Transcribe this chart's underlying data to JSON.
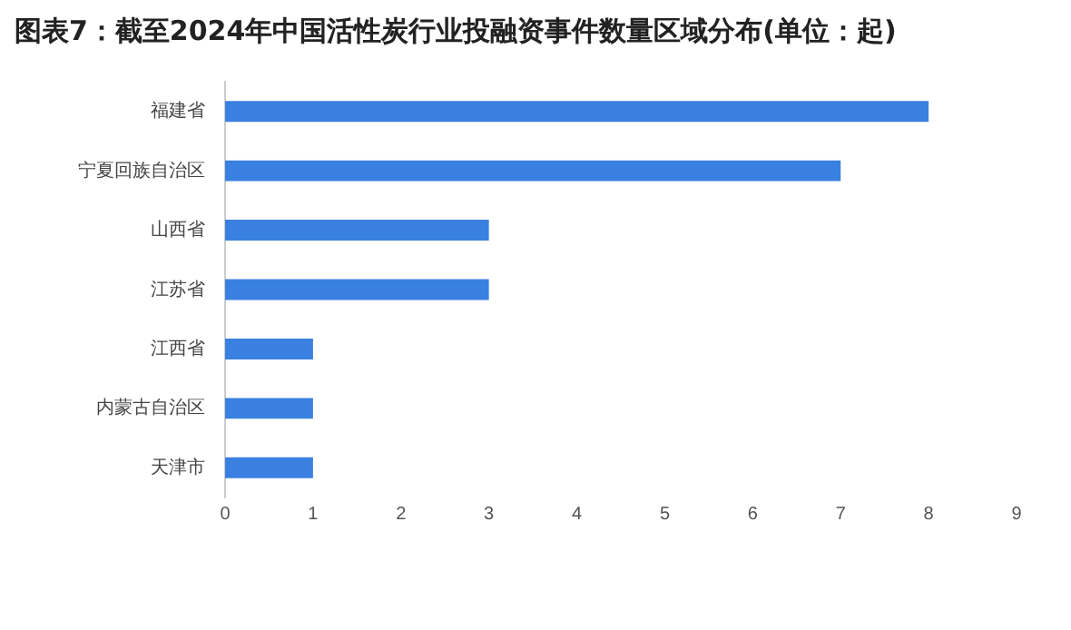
{
  "chart_data": {
    "type": "bar",
    "orientation": "horizontal",
    "title": "图表7：截至2024年中国活性炭行业投融资事件数量区域分布(单位：起)",
    "categories": [
      "福建省",
      "宁夏回族自治区",
      "山西省",
      "江苏省",
      "江西省",
      "内蒙古自治区",
      "天津市"
    ],
    "values": [
      8,
      7,
      3,
      3,
      1,
      1,
      1
    ],
    "color": "#3a80e0",
    "xlim": [
      0,
      9
    ],
    "xticks": [
      0,
      1,
      2,
      3,
      4,
      5,
      6,
      7,
      8,
      9
    ],
    "grid": false
  }
}
